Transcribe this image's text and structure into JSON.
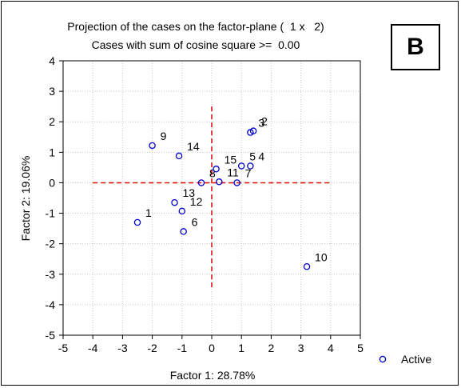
{
  "panel_label": "B",
  "colors": {
    "marker": "#0000cc",
    "crosshair": "#e00000",
    "grid": "#c8c8c8",
    "axis": "#000000"
  },
  "chart_data": {
    "type": "scatter",
    "title": "Projection of the cases on the factor-plane (  1 x   2)",
    "subtitle": "Cases with sum of cosine square >=  0.00",
    "xlabel": "Factor 1: 28.78%",
    "ylabel": "Factor 2: 19.06%",
    "xlim": [
      -5,
      5
    ],
    "ylim": [
      -5,
      4
    ],
    "xticks": [
      -5,
      -4,
      -3,
      -2,
      -1,
      0,
      1,
      2,
      3,
      4,
      5
    ],
    "yticks": [
      -5,
      -4,
      -3,
      -2,
      -1,
      0,
      1,
      2,
      3,
      4
    ],
    "grid": true,
    "legend": {
      "position": "bottom-right",
      "entries": [
        "Active"
      ]
    },
    "reference_lines": {
      "horizontal": {
        "y": 0,
        "from": -4,
        "to": 4
      },
      "vertical": {
        "x": 0,
        "from": -3.5,
        "to": 2.5
      }
    },
    "series": [
      {
        "name": "Active",
        "marker": "circle",
        "points": [
          {
            "label": "1",
            "x": -2.5,
            "y": -1.3
          },
          {
            "label": "2",
            "x": 1.4,
            "y": 1.7
          },
          {
            "label": "3",
            "x": 1.3,
            "y": 1.65
          },
          {
            "label": "4",
            "x": 1.3,
            "y": 0.55
          },
          {
            "label": "5",
            "x": 1.0,
            "y": 0.55
          },
          {
            "label": "6",
            "x": -0.95,
            "y": -1.6
          },
          {
            "label": "7",
            "x": 0.85,
            "y": 0.0
          },
          {
            "label": "8",
            "x": -0.35,
            "y": 0.0
          },
          {
            "label": "9",
            "x": -2.0,
            "y": 1.22
          },
          {
            "label": "10",
            "x": 3.2,
            "y": -2.75
          },
          {
            "label": "11",
            "x": 0.25,
            "y": 0.03
          },
          {
            "label": "12",
            "x": -1.0,
            "y": -0.93
          },
          {
            "label": "13",
            "x": -1.25,
            "y": -0.65
          },
          {
            "label": "14",
            "x": -1.1,
            "y": 0.88
          },
          {
            "label": "15",
            "x": 0.15,
            "y": 0.45
          }
        ]
      }
    ]
  }
}
